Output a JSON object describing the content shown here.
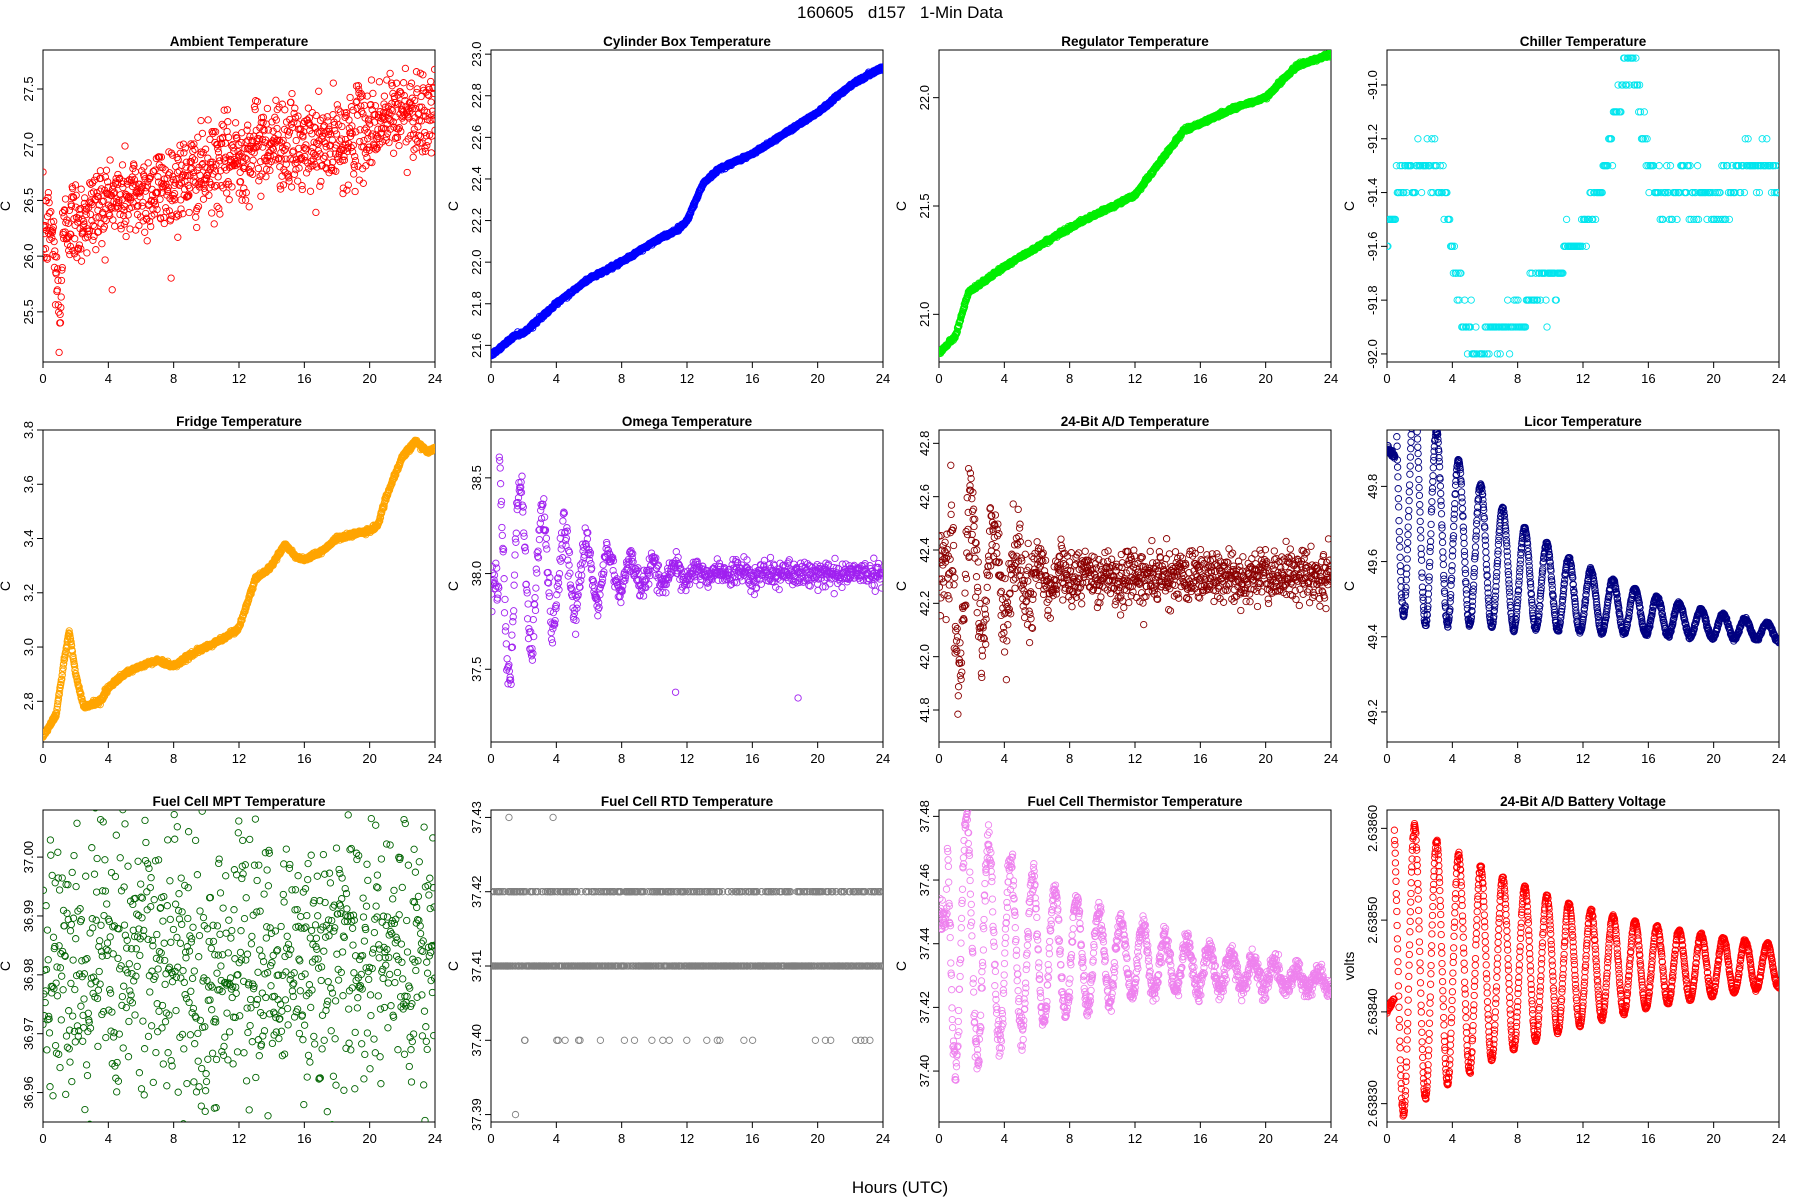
{
  "figure": {
    "title": "160605   d157   1-Min Data",
    "xlabel": "Hours (UTC)"
  },
  "chart_data": [
    {
      "type": "scatter",
      "title": "Ambient Temperature",
      "ylabel": "C",
      "color": "#ff0000",
      "xlim": [
        0,
        24
      ],
      "ylim": [
        25.05,
        27.85
      ],
      "xticks": [
        0,
        4,
        8,
        12,
        16,
        20,
        24
      ],
      "yticks": [
        25.5,
        26.0,
        26.5,
        27.0,
        27.5
      ],
      "control_points": [
        [
          0,
          26.2
        ],
        [
          0.5,
          26.3
        ],
        [
          0.9,
          25.7
        ],
        [
          1.0,
          25.2
        ],
        [
          1.2,
          26.1
        ],
        [
          1.5,
          26.35
        ],
        [
          2,
          26.3
        ],
        [
          4,
          26.5
        ],
        [
          6,
          26.55
        ],
        [
          8,
          26.65
        ],
        [
          10,
          26.75
        ],
        [
          12,
          26.9
        ],
        [
          14,
          27.05
        ],
        [
          16,
          26.95
        ],
        [
          18,
          27.0
        ],
        [
          20,
          27.15
        ],
        [
          22,
          27.3
        ],
        [
          24,
          27.3
        ]
      ],
      "noise": 0.2,
      "count": 1100
    },
    {
      "type": "scatter",
      "title": "Cylinder Box Temperature",
      "ylabel": "C",
      "color": "#0000ff",
      "xlim": [
        0,
        24
      ],
      "ylim": [
        21.52,
        23.02
      ],
      "xticks": [
        0,
        4,
        8,
        12,
        16,
        20,
        24
      ],
      "yticks": [
        21.6,
        21.8,
        22.0,
        22.2,
        22.4,
        22.6,
        22.8,
        23.0
      ],
      "control_points": [
        [
          0,
          21.55
        ],
        [
          1.5,
          21.65
        ],
        [
          2,
          21.66
        ],
        [
          4,
          21.8
        ],
        [
          6,
          21.92
        ],
        [
          8,
          22.0
        ],
        [
          10,
          22.1
        ],
        [
          11.5,
          22.16
        ],
        [
          12,
          22.2
        ],
        [
          13,
          22.38
        ],
        [
          14,
          22.45
        ],
        [
          16,
          22.52
        ],
        [
          18,
          22.62
        ],
        [
          20,
          22.72
        ],
        [
          22,
          22.85
        ],
        [
          24,
          22.94
        ]
      ],
      "noise": 0.004,
      "count": 1440
    },
    {
      "type": "scatter",
      "title": "Regulator Temperature",
      "ylabel": "C",
      "color": "#00ee00",
      "xlim": [
        0,
        24
      ],
      "ylim": [
        20.78,
        22.22
      ],
      "xticks": [
        0,
        4,
        8,
        12,
        16,
        20,
        24
      ],
      "yticks": [
        21.0,
        21.5,
        22.0
      ],
      "control_points": [
        [
          0,
          20.82
        ],
        [
          1,
          20.9
        ],
        [
          1.8,
          21.1
        ],
        [
          4,
          21.22
        ],
        [
          8,
          21.4
        ],
        [
          12,
          21.55
        ],
        [
          14,
          21.75
        ],
        [
          15,
          21.85
        ],
        [
          16,
          21.88
        ],
        [
          18,
          21.95
        ],
        [
          20,
          22.0
        ],
        [
          21,
          22.08
        ],
        [
          22,
          22.15
        ],
        [
          24,
          22.2
        ]
      ],
      "noise": 0.004,
      "count": 1440
    },
    {
      "type": "scatter",
      "title": "Chiller Temperature",
      "ylabel": "C",
      "color": "#00e5ee",
      "xlim": [
        0,
        24
      ],
      "ylim": [
        -92.03,
        -90.87
      ],
      "xticks": [
        0,
        4,
        8,
        12,
        16,
        20,
        24
      ],
      "yticks": [
        -92.0,
        -91.8,
        -91.6,
        -91.4,
        -91.2,
        -91.0
      ],
      "control_points": [
        [
          0,
          -91.6
        ],
        [
          0.3,
          -91.5
        ],
        [
          0.7,
          -91.4
        ],
        [
          1,
          -91.3
        ],
        [
          3,
          -91.3
        ],
        [
          3.5,
          -91.4
        ],
        [
          4,
          -91.6
        ],
        [
          4.5,
          -91.8
        ],
        [
          5,
          -91.9
        ],
        [
          5.5,
          -92.0
        ],
        [
          7,
          -91.9
        ],
        [
          8,
          -91.9
        ],
        [
          9,
          -91.8
        ],
        [
          10,
          -91.7
        ],
        [
          11.5,
          -91.6
        ],
        [
          12.5,
          -91.5
        ],
        [
          13.5,
          -91.3
        ],
        [
          14,
          -91.1
        ],
        [
          14.5,
          -91.0
        ],
        [
          15,
          -90.9
        ],
        [
          15.5,
          -91.1
        ],
        [
          16,
          -91.3
        ],
        [
          17,
          -91.4
        ],
        [
          18,
          -91.4
        ],
        [
          19,
          -91.4
        ],
        [
          21,
          -91.4
        ],
        [
          22,
          -91.3
        ],
        [
          23.5,
          -91.3
        ],
        [
          24,
          -91.4
        ]
      ],
      "noise": 0.05,
      "step": 0.1,
      "count": 420
    },
    {
      "type": "scatter",
      "title": "Fridge Temperature",
      "ylabel": "C",
      "color": "#ffa500",
      "xlim": [
        0,
        24
      ],
      "ylim": [
        2.65,
        3.8
      ],
      "xticks": [
        0,
        4,
        8,
        12,
        16,
        20,
        24
      ],
      "yticks": [
        2.8,
        3.0,
        3.2,
        3.4,
        3.6,
        3.8
      ],
      "control_points": [
        [
          0,
          2.67
        ],
        [
          0.8,
          2.75
        ],
        [
          1.3,
          2.95
        ],
        [
          1.6,
          3.06
        ],
        [
          2,
          2.9
        ],
        [
          2.5,
          2.78
        ],
        [
          3.5,
          2.8
        ],
        [
          4,
          2.85
        ],
        [
          5,
          2.9
        ],
        [
          6,
          2.93
        ],
        [
          7,
          2.95
        ],
        [
          8,
          2.93
        ],
        [
          9,
          2.97
        ],
        [
          10,
          3.0
        ],
        [
          11,
          3.03
        ],
        [
          12,
          3.07
        ],
        [
          13,
          3.25
        ],
        [
          14,
          3.3
        ],
        [
          14.8,
          3.38
        ],
        [
          15.5,
          3.33
        ],
        [
          16,
          3.32
        ],
        [
          17,
          3.35
        ],
        [
          18,
          3.4
        ],
        [
          20,
          3.43
        ],
        [
          20.5,
          3.45
        ],
        [
          21,
          3.55
        ],
        [
          22,
          3.7
        ],
        [
          22.8,
          3.76
        ],
        [
          23.5,
          3.72
        ],
        [
          24,
          3.73
        ]
      ],
      "noise": 0.004,
      "count": 1440
    },
    {
      "type": "scatter",
      "title": "Omega Temperature",
      "ylabel": "C",
      "color": "#a020f0",
      "xlim": [
        0,
        24
      ],
      "ylim": [
        37.12,
        38.75
      ],
      "xticks": [
        0,
        4,
        8,
        12,
        16,
        20,
        24
      ],
      "yticks": [
        37.5,
        38.0,
        38.5
      ],
      "osc": {
        "base": 38.0,
        "amp": 0.65,
        "period": 1.35,
        "decay": 0.25,
        "start": 0.5,
        "t0": 0.1,
        "pre": 37.95
      },
      "noise": 0.05,
      "count": 900,
      "outliers": [
        [
          11.3,
          37.38
        ],
        [
          18.8,
          37.35
        ]
      ]
    },
    {
      "type": "scatter",
      "title": "24-Bit A/D Temperature",
      "ylabel": "C",
      "color": "#8b0000",
      "xlim": [
        0,
        24
      ],
      "ylim": [
        41.68,
        42.85
      ],
      "xticks": [
        0,
        4,
        8,
        12,
        16,
        20,
        24
      ],
      "yticks": [
        41.8,
        42.0,
        42.2,
        42.4,
        42.6,
        42.8
      ],
      "osc": {
        "base": 42.3,
        "amp": 0.45,
        "period": 1.4,
        "decay": 0.35,
        "start": 0.7,
        "t0": 0.2,
        "pre": 42.35
      },
      "noise": 0.08,
      "count": 1100
    },
    {
      "type": "scatter",
      "title": "Licor Temperature",
      "ylabel": "C",
      "color": "#000080",
      "xlim": [
        0,
        24
      ],
      "ylim": [
        49.12,
        49.95
      ],
      "xticks": [
        0,
        4,
        8,
        12,
        16,
        20,
        24
      ],
      "yticks": [
        49.2,
        49.4,
        49.6,
        49.8
      ],
      "osc": {
        "amp": 0.35,
        "period": 1.35,
        "decay": 0.12,
        "start": 0.5,
        "t0": 0.0,
        "pre": 49.9
      },
      "base_points": [
        [
          0,
          49.85
        ],
        [
          2,
          49.72
        ],
        [
          4,
          49.66
        ],
        [
          8,
          49.56
        ],
        [
          12,
          49.5
        ],
        [
          16,
          49.46
        ],
        [
          20,
          49.43
        ],
        [
          24,
          49.41
        ]
      ],
      "noise": 0.004,
      "count": 1440
    },
    {
      "type": "scatter",
      "title": "Fuel Cell MPT Temperature",
      "ylabel": "C",
      "color": "#006400",
      "xlim": [
        0,
        24
      ],
      "ylim": [
        36.955,
        37.008
      ],
      "xticks": [
        0,
        4,
        8,
        12,
        16,
        20,
        24
      ],
      "yticks": [
        36.96,
        36.97,
        36.98,
        36.99,
        37.0
      ],
      "control_points": [
        [
          0,
          36.98
        ],
        [
          4,
          36.981
        ],
        [
          8,
          36.983
        ],
        [
          12,
          36.98
        ],
        [
          16,
          36.982
        ],
        [
          20,
          36.984
        ],
        [
          24,
          36.985
        ]
      ],
      "noise": 0.012,
      "count": 900
    },
    {
      "type": "scatter",
      "title": "Fuel Cell RTD Temperature",
      "ylabel": "C",
      "color": "#808080",
      "xlim": [
        0,
        24
      ],
      "ylim": [
        37.389,
        37.431
      ],
      "xticks": [
        0,
        4,
        8,
        12,
        16,
        20,
        24
      ],
      "yticks": [
        37.39,
        37.4,
        37.41,
        37.42,
        37.43
      ],
      "levels": [
        37.41,
        37.42,
        37.4
      ],
      "noise": 0.0,
      "count": 900,
      "outliers": [
        [
          1.1,
          37.43
        ],
        [
          3.8,
          37.43
        ],
        [
          1.5,
          37.39
        ]
      ]
    },
    {
      "type": "scatter",
      "title": "Fuel Cell Thermistor Temperature",
      "ylabel": "C",
      "color": "#ee82ee",
      "xlim": [
        0,
        24
      ],
      "ylim": [
        37.384,
        37.482
      ],
      "xticks": [
        0,
        4,
        8,
        12,
        16,
        20,
        24
      ],
      "yticks": [
        37.4,
        37.42,
        37.44,
        37.46,
        37.48
      ],
      "osc": {
        "amp": 0.045,
        "period": 1.35,
        "decay": 0.12,
        "start": 0.5,
        "t0": 0.0,
        "pre": 37.45
      },
      "base_points": [
        [
          0,
          37.445
        ],
        [
          2,
          37.44
        ],
        [
          6,
          37.437
        ],
        [
          12,
          37.435
        ],
        [
          18,
          37.431
        ],
        [
          24,
          37.428
        ]
      ],
      "noise": 0.003,
      "count": 1300
    },
    {
      "type": "scatter",
      "title": "24-Bit A/D Battery Voltage",
      "ylabel": "volts",
      "color": "#ff0000",
      "xlim": [
        0,
        24
      ],
      "ylim": [
        2.63828,
        2.63862
      ],
      "xticks": [
        0,
        4,
        8,
        12,
        16,
        20,
        24
      ],
      "yticks": [
        2.6383,
        2.6384,
        2.6385,
        2.6386
      ],
      "ytick_labels": [
        "2.63830",
        "2.63840",
        "2.63850",
        "2.63860"
      ],
      "osc": {
        "base": 2.63845,
        "amp": 0.00017,
        "period": 1.35,
        "decay": 0.085,
        "start": 0.45,
        "t0": 0.0,
        "pre": 2.6384
      },
      "noise": 1.5e-06,
      "count": 1440
    }
  ]
}
